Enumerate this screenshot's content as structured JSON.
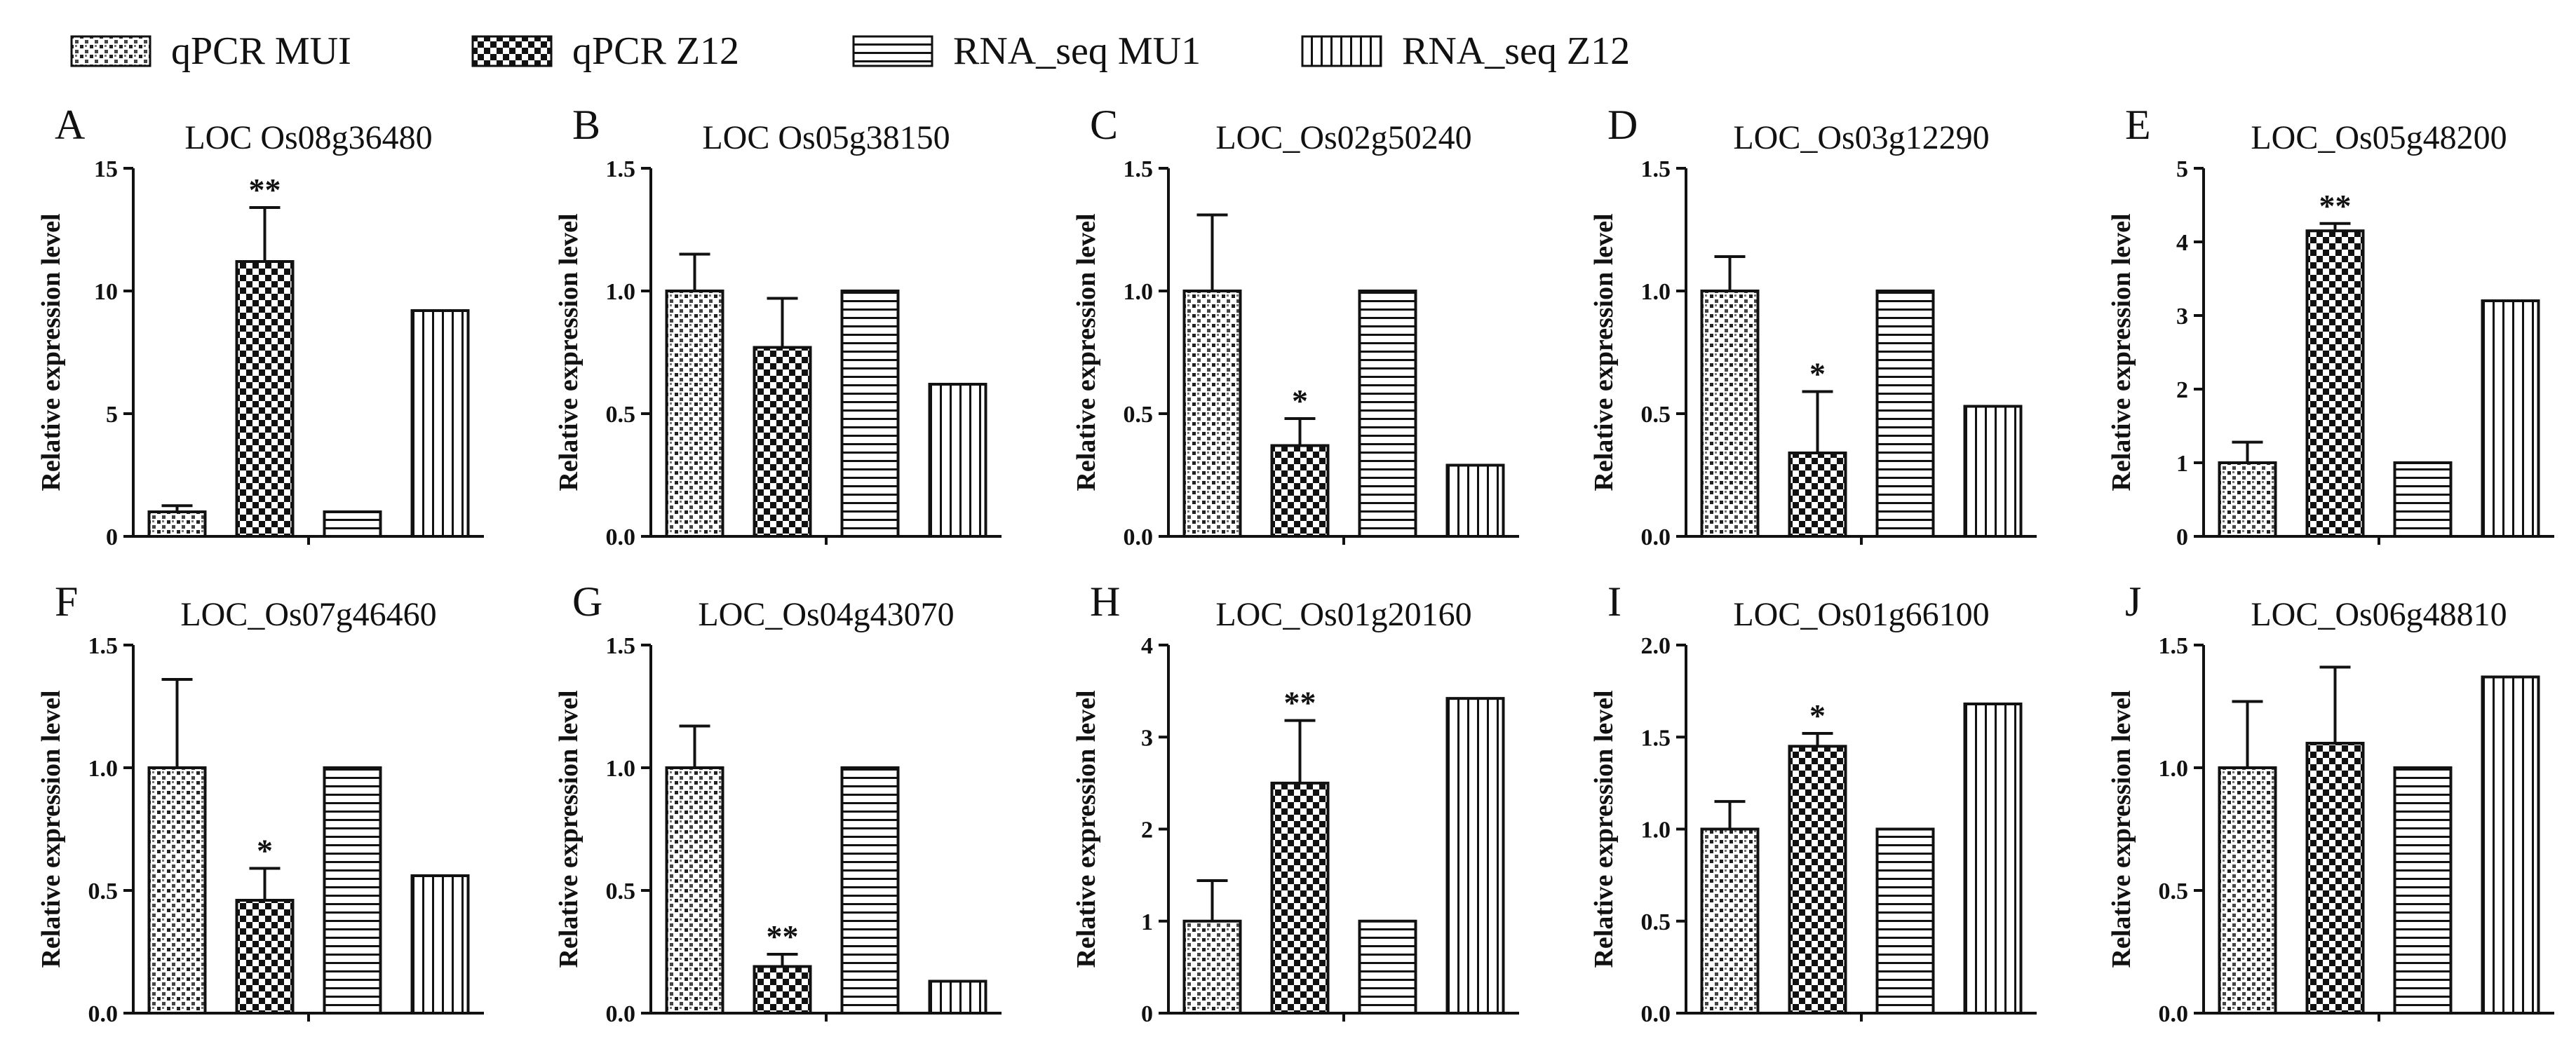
{
  "legend": [
    {
      "label": "qPCR MUI",
      "pattern": "dots"
    },
    {
      "label": "qPCR Z12",
      "pattern": "check"
    },
    {
      "label": "RNA_seq MU1",
      "pattern": "hlines"
    },
    {
      "label": "RNA_seq Z12",
      "pattern": "vlines"
    }
  ],
  "colors": {
    "ink": "#111111",
    "background": "#ffffff"
  },
  "chart_data": [
    {
      "panel": "A",
      "title": "LOC  Os08g36480",
      "type": "bar",
      "ylabel": "Relative expression level",
      "ylim": [
        0,
        15
      ],
      "yticks": [
        "0",
        "5",
        "10",
        "15"
      ],
      "tickvals": [
        0,
        5,
        10,
        15
      ],
      "categories": [
        "qPCR MUI",
        "qPCR Z12",
        "RNA_seq MU1",
        "RNA_seq Z12"
      ],
      "values": [
        1.0,
        11.2,
        1.0,
        9.2
      ],
      "errors": [
        0.25,
        2.2,
        null,
        null
      ],
      "signif": [
        "",
        "**",
        "",
        ""
      ]
    },
    {
      "panel": "B",
      "title": "LOC  Os05g38150",
      "type": "bar",
      "ylabel": "Relative expression level",
      "ylim": [
        0,
        1.5
      ],
      "yticks": [
        "0.0",
        "0.5",
        "1.0",
        "1.5"
      ],
      "tickvals": [
        0,
        0.5,
        1.0,
        1.5
      ],
      "categories": [
        "qPCR MUI",
        "qPCR Z12",
        "RNA_seq MU1",
        "RNA_seq Z12"
      ],
      "values": [
        1.0,
        0.77,
        1.0,
        0.62
      ],
      "errors": [
        0.15,
        0.2,
        null,
        null
      ],
      "signif": [
        "",
        "",
        "",
        ""
      ]
    },
    {
      "panel": "C",
      "title": "LOC_Os02g50240",
      "type": "bar",
      "ylabel": "Relative expression level",
      "ylim": [
        0,
        1.5
      ],
      "yticks": [
        "0.0",
        "0.5",
        "1.0",
        "1.5"
      ],
      "tickvals": [
        0,
        0.5,
        1.0,
        1.5
      ],
      "categories": [
        "qPCR MUI",
        "qPCR Z12",
        "RNA_seq MU1",
        "RNA_seq Z12"
      ],
      "values": [
        1.0,
        0.37,
        1.0,
        0.29
      ],
      "errors": [
        0.31,
        0.11,
        null,
        null
      ],
      "signif": [
        "",
        "*",
        "",
        ""
      ]
    },
    {
      "panel": "D",
      "title": "LOC_Os03g12290",
      "type": "bar",
      "ylabel": "Relative expression level",
      "ylim": [
        0,
        1.5
      ],
      "yticks": [
        "0.0",
        "0.5",
        "1.0",
        "1.5"
      ],
      "tickvals": [
        0,
        0.5,
        1.0,
        1.5
      ],
      "categories": [
        "qPCR MUI",
        "qPCR Z12",
        "RNA_seq MU1",
        "RNA_seq Z12"
      ],
      "values": [
        1.0,
        0.34,
        1.0,
        0.53
      ],
      "errors": [
        0.14,
        0.25,
        null,
        null
      ],
      "signif": [
        "",
        "*",
        "",
        ""
      ]
    },
    {
      "panel": "E",
      "title": "LOC_Os05g48200",
      "type": "bar",
      "ylabel": "Relative expression level",
      "ylim": [
        0,
        5
      ],
      "yticks": [
        "0",
        "1",
        "2",
        "3",
        "4",
        "5"
      ],
      "tickvals": [
        0,
        1,
        2,
        3,
        4,
        5
      ],
      "categories": [
        "qPCR MUI",
        "qPCR Z12",
        "RNA_seq MU1",
        "RNA_seq Z12"
      ],
      "values": [
        1.0,
        4.15,
        1.0,
        3.2
      ],
      "errors": [
        0.28,
        0.1,
        null,
        null
      ],
      "signif": [
        "",
        "**",
        "",
        ""
      ]
    },
    {
      "panel": "F",
      "title": "LOC_Os07g46460",
      "type": "bar",
      "ylabel": "Relative expression level",
      "ylim": [
        0,
        1.5
      ],
      "yticks": [
        "0.0",
        "0.5",
        "1.0",
        "1.5"
      ],
      "tickvals": [
        0,
        0.5,
        1.0,
        1.5
      ],
      "categories": [
        "qPCR MUI",
        "qPCR Z12",
        "RNA_seq MU1",
        "RNA_seq Z12"
      ],
      "values": [
        1.0,
        0.46,
        1.0,
        0.56
      ],
      "errors": [
        0.36,
        0.13,
        null,
        null
      ],
      "signif": [
        "",
        "*",
        "",
        ""
      ]
    },
    {
      "panel": "G",
      "title": "LOC_Os04g43070",
      "type": "bar",
      "ylabel": "Relative expression level",
      "ylim": [
        0,
        1.5
      ],
      "yticks": [
        "0.0",
        "0.5",
        "1.0",
        "1.5"
      ],
      "tickvals": [
        0,
        0.5,
        1.0,
        1.5
      ],
      "categories": [
        "qPCR MUI",
        "qPCR Z12",
        "RNA_seq MU1",
        "RNA_seq Z12"
      ],
      "values": [
        1.0,
        0.19,
        1.0,
        0.13
      ],
      "errors": [
        0.17,
        0.05,
        null,
        null
      ],
      "signif": [
        "",
        "**",
        "",
        ""
      ]
    },
    {
      "panel": "H",
      "title": "LOC_Os01g20160",
      "type": "bar",
      "ylabel": "Relative expression level",
      "ylim": [
        0,
        4
      ],
      "yticks": [
        "0",
        "1",
        "2",
        "3",
        "4"
      ],
      "tickvals": [
        0,
        1,
        2,
        3,
        4
      ],
      "categories": [
        "qPCR MUI",
        "qPCR Z12",
        "RNA_seq MU1",
        "RNA_seq Z12"
      ],
      "values": [
        1.0,
        2.5,
        1.0,
        3.42
      ],
      "errors": [
        0.44,
        0.68,
        null,
        null
      ],
      "signif": [
        "",
        "**",
        "",
        ""
      ]
    },
    {
      "panel": "I",
      "title": "LOC_Os01g66100",
      "type": "bar",
      "ylabel": "Relative expression level",
      "ylim": [
        0,
        2.0
      ],
      "yticks": [
        "0.0",
        "0.5",
        "1.0",
        "1.5",
        "2.0"
      ],
      "tickvals": [
        0,
        0.5,
        1.0,
        1.5,
        2.0
      ],
      "categories": [
        "qPCR MUI",
        "qPCR Z12",
        "RNA_seq MU1",
        "RNA_seq Z12"
      ],
      "values": [
        1.0,
        1.45,
        1.0,
        1.68
      ],
      "errors": [
        0.15,
        0.07,
        null,
        null
      ],
      "signif": [
        "",
        "*",
        "",
        ""
      ]
    },
    {
      "panel": "J",
      "title": "LOC_Os06g48810",
      "type": "bar",
      "ylabel": "Relative expression level",
      "ylim": [
        0,
        1.5
      ],
      "yticks": [
        "0.0",
        "0.5",
        "1.0",
        "1.5"
      ],
      "tickvals": [
        0,
        0.5,
        1.0,
        1.5
      ],
      "categories": [
        "qPCR MUI",
        "qPCR Z12",
        "RNA_seq MU1",
        "RNA_seq Z12"
      ],
      "values": [
        1.0,
        1.1,
        1.0,
        1.37
      ],
      "errors": [
        0.27,
        0.31,
        null,
        null
      ],
      "signif": [
        "",
        "",
        "",
        ""
      ]
    }
  ]
}
